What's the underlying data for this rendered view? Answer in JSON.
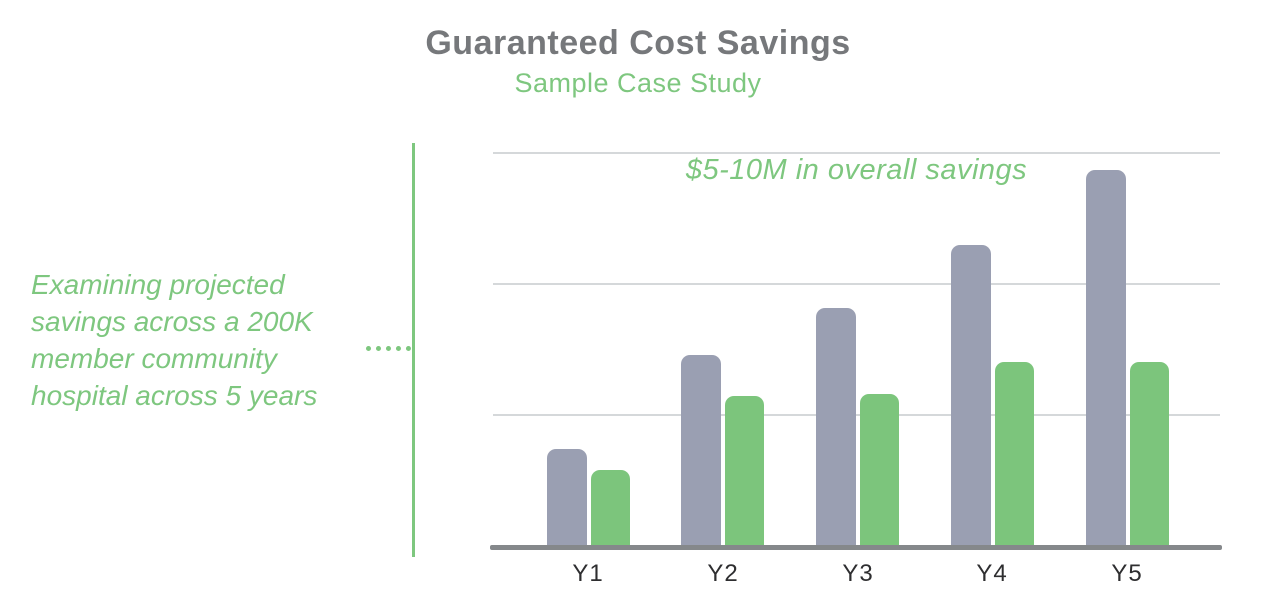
{
  "header": {
    "title": "Guaranteed Cost Savings",
    "subtitle": "Sample Case Study"
  },
  "side_note": {
    "lines": [
      "Examining projected",
      "savings across a 200K",
      "member community",
      "hospital across 5 years"
    ]
  },
  "annotation": "$5-10M in overall savings",
  "colors": {
    "title_gray": "#76787b",
    "accent_green": "#7ec77f",
    "bar_gray": "#9a9fb2",
    "bar_green": "#7cc57c",
    "gridline": "#d5d8da",
    "axis": "#85888b",
    "axis_label": "#2e2e30"
  },
  "chart_data": {
    "type": "bar",
    "title": "Guaranteed Cost Savings",
    "subtitle": "Sample Case Study",
    "annotation": "$5-10M in overall savings",
    "categories": [
      "Y1",
      "Y2",
      "Y3",
      "Y4",
      "Y5"
    ],
    "series": [
      {
        "name": "gray-bars",
        "color": "#9a9fb2",
        "values": [
          0.73,
          1.45,
          1.81,
          2.29,
          2.86
        ]
      },
      {
        "name": "green-bars",
        "color": "#7cc57c",
        "values": [
          0.57,
          1.14,
          1.15,
          1.4,
          1.4
        ]
      }
    ],
    "ylim": [
      0,
      3
    ],
    "gridlines_at": [
      1,
      2,
      3
    ],
    "y_axis_tick_labels": "none",
    "legend_position": "none",
    "units": "relative gridline units (no numeric y-axis labels shown)"
  }
}
